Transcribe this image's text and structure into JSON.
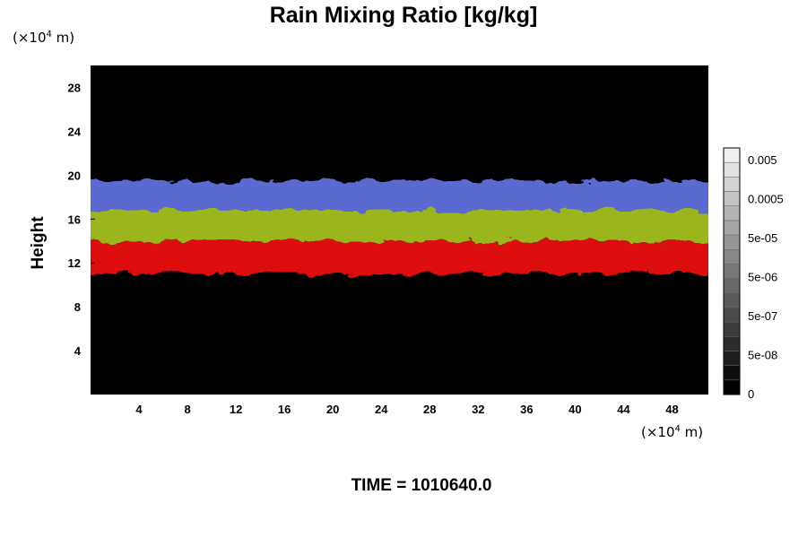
{
  "chart_data": {
    "type": "heatmap",
    "title": "Rain Mixing Ratio [kg/kg]",
    "ylabel": "Height",
    "x_unit_prefix": "(×10",
    "x_unit_exp": "4",
    "x_unit_suffix": " m)",
    "y_unit_prefix": "(×10",
    "y_unit_exp": "4",
    "y_unit_suffix": " m)",
    "xlim": [
      0,
      51
    ],
    "ylim": [
      0,
      30
    ],
    "x_ticks": [
      "4",
      "8",
      "12",
      "16",
      "20",
      "24",
      "28",
      "32",
      "36",
      "40",
      "44",
      "48"
    ],
    "y_ticks": [
      "4",
      "8",
      "12",
      "16",
      "20",
      "24",
      "28"
    ],
    "background_color": "#000000",
    "bands": [
      {
        "color": "#dd1111",
        "y_range": [
          11,
          14
        ]
      },
      {
        "color": "#9ab61a",
        "y_range": [
          14,
          16.8
        ]
      },
      {
        "color": "#5a6ad0",
        "y_range": [
          16.8,
          19.5
        ]
      }
    ],
    "colorbar": {
      "labels": [
        "0.005",
        "0.0005",
        "5e-05",
        "5e-06",
        "5e-07",
        "5e-08",
        "0"
      ],
      "levels": 17,
      "color_low": "#000000",
      "color_high": "#f0f0f0"
    },
    "time_text": "TIME = 1010640.0"
  }
}
